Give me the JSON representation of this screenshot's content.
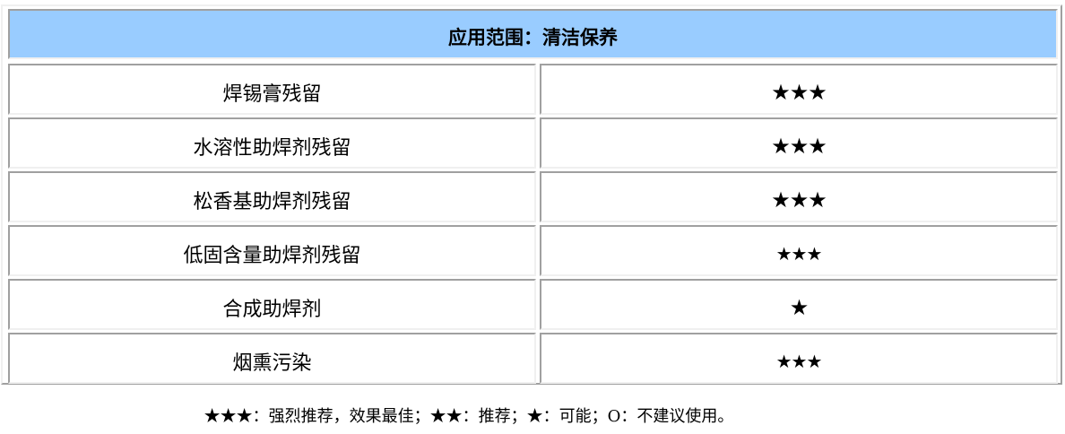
{
  "table": {
    "header": "应用范围：清洁保养",
    "rows": [
      {
        "item": "焊锡膏残留",
        "rating": "★★★"
      },
      {
        "item": "水溶性助焊剂残留",
        "rating": "★★★"
      },
      {
        "item": "松香基助焊剂残留",
        "rating": "★★★"
      },
      {
        "item": "低固含量助焊剂残留",
        "rating": "★★★"
      },
      {
        "item": "合成助焊剂",
        "rating": "★"
      },
      {
        "item": "烟熏污染",
        "rating": "★★★"
      }
    ]
  },
  "legend": "★★★：强烈推荐，效果最佳；★★：推荐；★：可能；O：不建议使用。",
  "colors": {
    "header_bg": "#99ccff"
  }
}
